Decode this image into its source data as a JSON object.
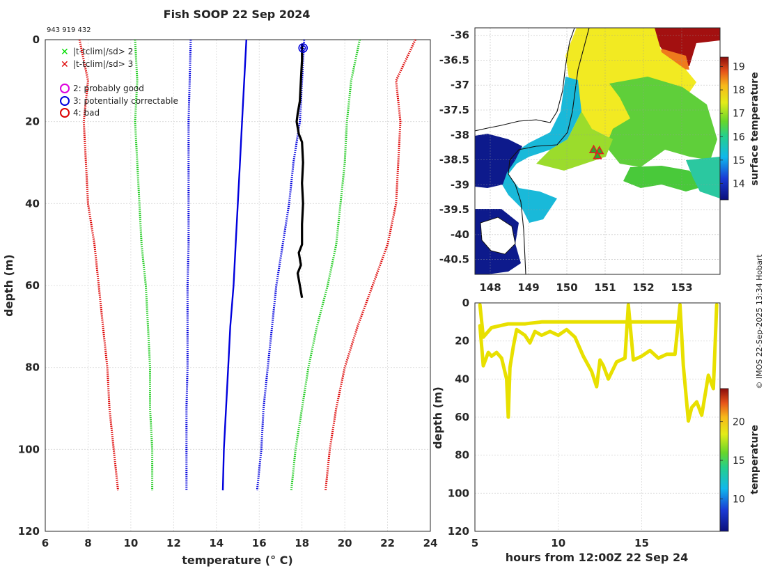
{
  "figure": {
    "title": "Fish SOOP 22 Sep 2024",
    "id_label": "943 919 432",
    "credit": "© IMOS 22-Sep-2025 13:34 Hobart"
  },
  "legend": {
    "items": [
      {
        "marker": "x",
        "color": "#00dd00",
        "label": "|t-tclim|/sd> 2"
      },
      {
        "marker": "x",
        "color": "#dd0000",
        "label": "|t-tclim|/sd> 3"
      },
      {
        "marker": "o",
        "color": "#dd00dd",
        "label": "2: probably good"
      },
      {
        "marker": "o",
        "color": "#0000dd",
        "label": "3: potentially correctable"
      },
      {
        "marker": "o",
        "color": "#dd0000",
        "label": "4: bad"
      }
    ]
  },
  "chart_data": [
    {
      "type": "line",
      "name": "profile",
      "xlabel": "temperature (° C)",
      "ylabel": "depth (m)",
      "xlim": [
        6,
        24
      ],
      "ylim": [
        0,
        120
      ],
      "y_reversed": true,
      "xticks": [
        6,
        8,
        10,
        12,
        14,
        16,
        18,
        20,
        22,
        24
      ],
      "yticks": [
        0,
        20,
        40,
        60,
        80,
        100,
        120
      ],
      "grid": true,
      "series": [
        {
          "name": "clim -3sd",
          "color": "#dd0000",
          "style": "dotted",
          "depth": [
            0,
            10,
            20,
            30,
            40,
            50,
            60,
            70,
            80,
            90,
            100,
            110
          ],
          "temp": [
            7.6,
            8.0,
            7.8,
            7.9,
            8.0,
            8.3,
            8.5,
            8.7,
            8.9,
            9.0,
            9.2,
            9.4
          ]
        },
        {
          "name": "clim -2sd",
          "color": "#22cc22",
          "style": "dotted",
          "depth": [
            0,
            10,
            20,
            30,
            40,
            50,
            60,
            70,
            80,
            90,
            100,
            110
          ],
          "temp": [
            10.2,
            10.3,
            10.2,
            10.3,
            10.4,
            10.5,
            10.7,
            10.8,
            10.9,
            10.9,
            11.0,
            11.0
          ]
        },
        {
          "name": "clim -1sd",
          "color": "#0000dd",
          "style": "dotted",
          "depth": [
            0,
            10,
            20,
            30,
            40,
            50,
            60,
            70,
            80,
            90,
            100,
            110
          ],
          "temp": [
            12.8,
            12.75,
            12.7,
            12.7,
            12.7,
            12.7,
            12.65,
            12.65,
            12.65,
            12.6,
            12.6,
            12.6
          ]
        },
        {
          "name": "clim mean",
          "color": "#0000dd",
          "style": "solid",
          "depth": [
            0,
            10,
            20,
            30,
            40,
            50,
            60,
            70,
            80,
            90,
            100,
            110
          ],
          "temp": [
            15.4,
            15.3,
            15.2,
            15.1,
            15.0,
            14.9,
            14.8,
            14.65,
            14.55,
            14.45,
            14.35,
            14.3
          ]
        },
        {
          "name": "clim +1sd",
          "color": "#0000dd",
          "style": "dotted",
          "depth": [
            0,
            10,
            20,
            30,
            40,
            50,
            60,
            70,
            80,
            90,
            100,
            110
          ],
          "temp": [
            18.1,
            18.0,
            17.9,
            17.6,
            17.4,
            17.1,
            16.8,
            16.6,
            16.4,
            16.2,
            16.1,
            15.9
          ]
        },
        {
          "name": "clim +2sd",
          "color": "#22cc22",
          "style": "dotted",
          "depth": [
            0,
            10,
            20,
            30,
            40,
            50,
            60,
            70,
            80,
            90,
            100,
            110
          ],
          "temp": [
            20.7,
            20.3,
            20.1,
            20.0,
            19.8,
            19.6,
            19.2,
            18.7,
            18.3,
            18.0,
            17.7,
            17.5
          ]
        },
        {
          "name": "clim +3sd",
          "color": "#dd0000",
          "style": "dotted",
          "depth": [
            0,
            10,
            15,
            20,
            30,
            40,
            50,
            60,
            70,
            80,
            90,
            100,
            110
          ],
          "temp": [
            23.3,
            22.4,
            22.5,
            22.6,
            22.5,
            22.4,
            22.0,
            21.3,
            20.6,
            20.0,
            19.6,
            19.3,
            19.1
          ]
        },
        {
          "name": "observed",
          "color": "#000000",
          "style": "solid",
          "depth": [
            1,
            5,
            10,
            15,
            18,
            20,
            23,
            25,
            30,
            35,
            40,
            45,
            50,
            52,
            55,
            57,
            60,
            63
          ],
          "temp": [
            18.0,
            18.0,
            17.95,
            17.9,
            17.8,
            17.75,
            17.85,
            18.0,
            18.05,
            18.0,
            18.05,
            18.0,
            18.0,
            17.85,
            17.95,
            17.8,
            17.9,
            18.0
          ]
        }
      ],
      "flags": [
        {
          "temp": 18.05,
          "depth": 1,
          "color": "#0000dd",
          "meaning": "3: potentially correctable"
        }
      ]
    },
    {
      "type": "heatmap",
      "name": "sst-map",
      "colorbar_label": "surface temperature",
      "colorbar_ticks": [
        14,
        15,
        16,
        17,
        18,
        19
      ],
      "colorbar_range": [
        13.3,
        19.4
      ],
      "xlim": [
        147.6,
        154.0
      ],
      "ylim": [
        -40.8,
        -35.85
      ],
      "xticks": [
        148,
        149,
        150,
        151,
        152,
        153
      ],
      "yticks": [
        -36,
        -36.5,
        -37,
        -37.5,
        -38,
        -38.5,
        -39,
        -39.5,
        -40,
        -40.5
      ],
      "stations": [
        {
          "lon": 150.7,
          "lat": -38.3
        },
        {
          "lon": 150.85,
          "lat": -38.32
        },
        {
          "lon": 150.8,
          "lat": -38.42
        }
      ]
    },
    {
      "type": "line",
      "name": "depth-time",
      "xlabel": "hours from 12:00Z 22 Sep 24",
      "ylabel": "depth (m)",
      "xlim": [
        5,
        19.7
      ],
      "ylim": [
        0,
        120
      ],
      "y_reversed": true,
      "xticks": [
        5,
        10,
        15
      ],
      "yticks": [
        0,
        20,
        40,
        60,
        80,
        100,
        120
      ],
      "colorbar_label": "temperature",
      "colorbar_ticks": [
        10,
        15,
        20
      ],
      "colorbar_range": [
        5.8,
        24.3
      ],
      "series": [
        {
          "name": "track-a",
          "color": "#e8e000",
          "x": [
            5.3,
            5.5,
            6.0,
            7.0,
            8.0,
            9.0,
            10.0,
            11.0,
            12.0,
            13.0,
            14.0,
            15.0,
            16.0,
            17.0,
            17.3
          ],
          "y": [
            1,
            18,
            13,
            11,
            11,
            10,
            10,
            10,
            10,
            10,
            10,
            10,
            10,
            10,
            10
          ]
        },
        {
          "name": "track-b",
          "color": "#e8e000",
          "x": [
            5.3,
            5.5,
            5.8,
            6.0,
            6.3,
            6.6,
            6.9,
            7.0,
            7.1,
            7.3,
            7.5,
            8.0,
            8.3,
            8.6,
            9.0,
            9.5,
            10.0,
            10.5,
            11.0,
            11.5,
            12.0,
            12.3,
            12.5,
            12.7,
            13.0,
            13.5,
            14.0,
            14.2,
            14.5,
            15.0,
            15.5,
            16.0,
            16.5,
            17.0,
            17.3,
            17.5,
            17.8,
            18.0,
            18.3,
            18.6,
            19.0,
            19.3,
            19.5
          ],
          "y": [
            12,
            33,
            26,
            28,
            26,
            29,
            40,
            60,
            34,
            23,
            14,
            17,
            21,
            15,
            17,
            15,
            17,
            14,
            18,
            28,
            36,
            44,
            30,
            33,
            40,
            31,
            29,
            1,
            30,
            28,
            25,
            29,
            27,
            27,
            1,
            33,
            62,
            55,
            52,
            59,
            38,
            45,
            1
          ]
        }
      ]
    }
  ]
}
